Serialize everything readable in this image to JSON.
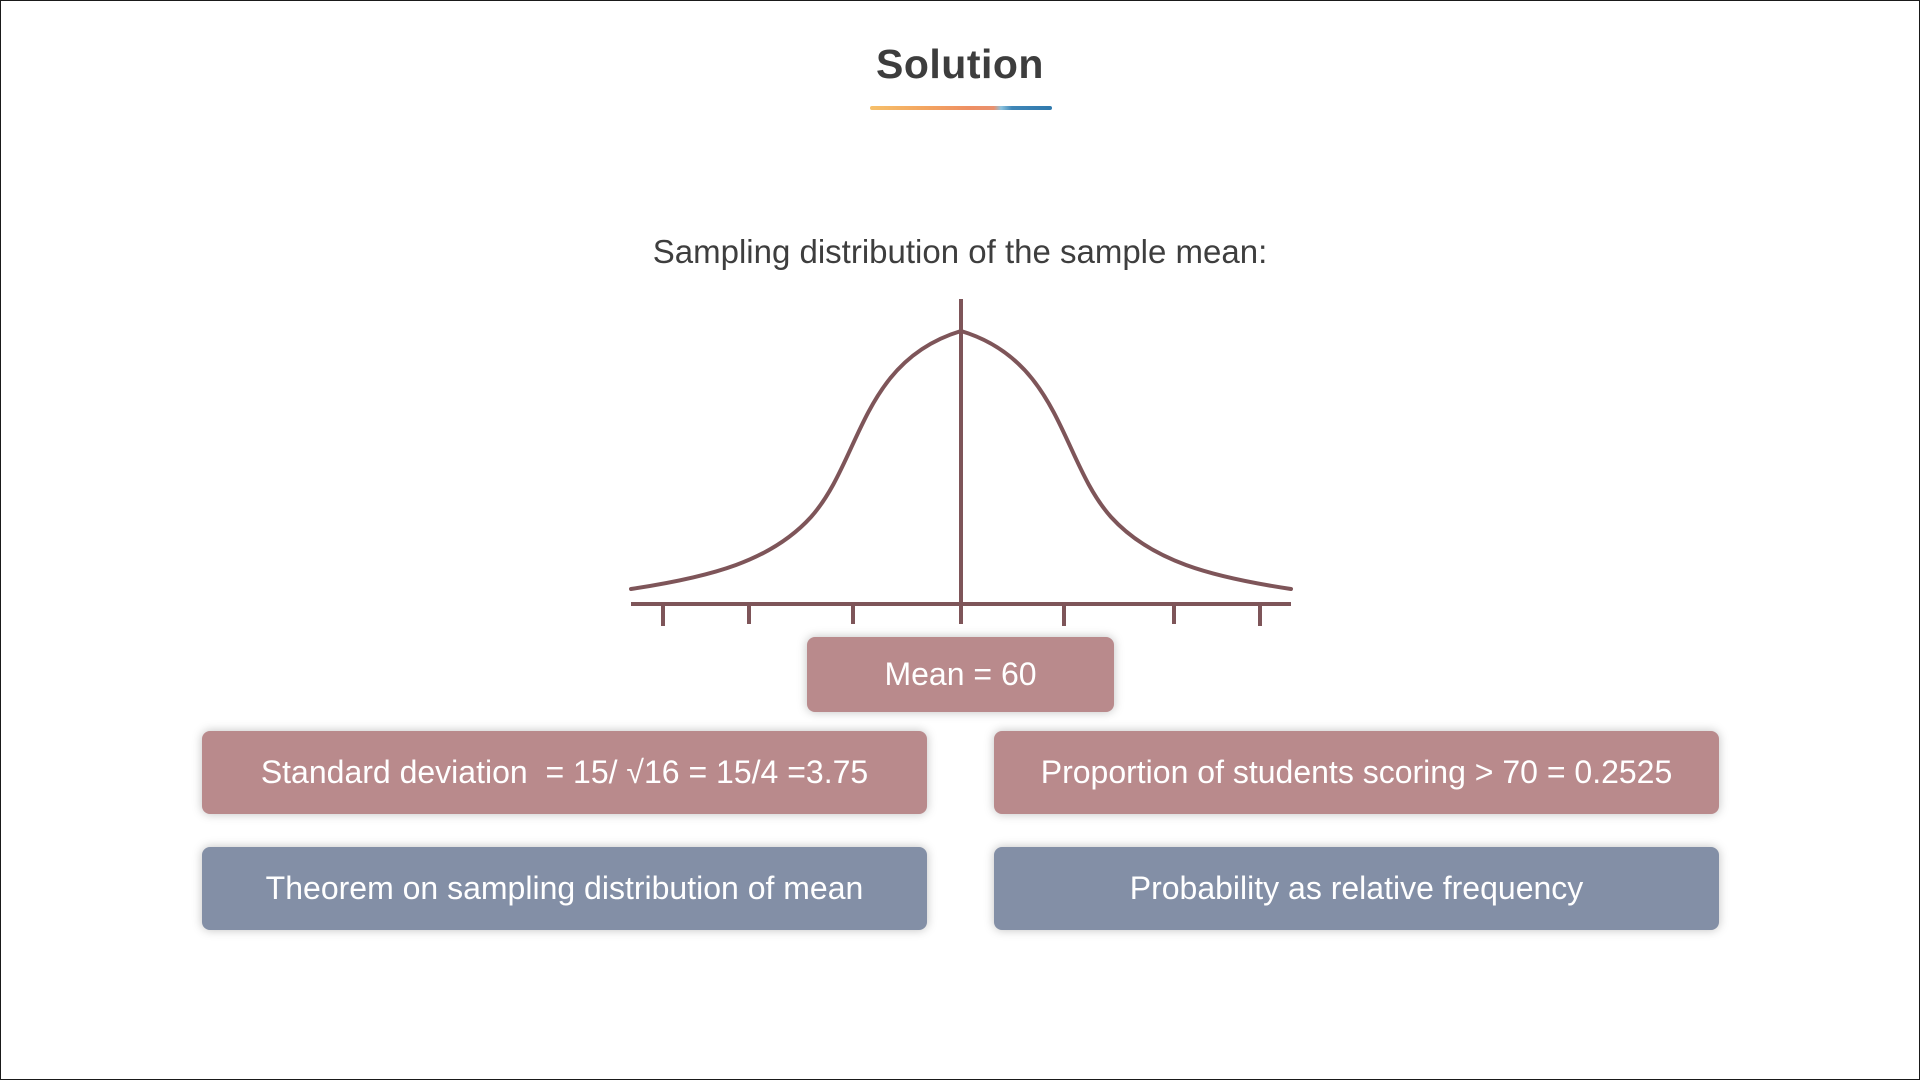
{
  "slide": {
    "title": "Solution",
    "subtitle": "Sampling distribution of the sample mean:"
  },
  "diagram": {
    "curve_color": "#7e5559",
    "tick_count": 7
  },
  "boxes": {
    "mean": "Mean = 60",
    "standard_deviation": "Standard deviation  = 15/ √16 = 15/4 =3.75",
    "proportion": "Proportion of students scoring > 70 = 0.2525",
    "theorem": "Theorem on sampling distribution of mean",
    "probability": "Probability as relative frequency"
  },
  "colors": {
    "rose_box": "#b98a8c",
    "slate_box": "#838fa6",
    "title_underline_start": "#f6c06a",
    "title_underline_end": "#2f79ad"
  }
}
